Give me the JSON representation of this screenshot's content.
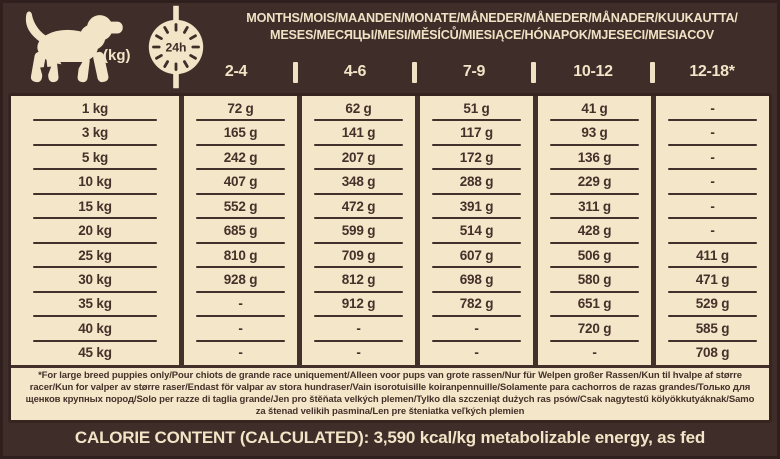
{
  "colors": {
    "background_brown": "#3F2D29",
    "panel_cream": "#F4E6C8",
    "line_dark_brown": "#44302B",
    "text_cream": "#F2E4C6"
  },
  "header": {
    "puppy_icon": "puppy-silhouette",
    "weight_unit_label": "(kg)",
    "clock_icon": "24h-clock",
    "clock_label": "24h",
    "months_line1": "MONTHS/MOIS/MAANDEN/MONATE/MÅNEDER/MÅNEDER/MÅNADER/KUUKAUTTA/",
    "months_line2": "MESES/МЕСЯЦЫ/MESI/MĚSÍCŮ/MIESIĄCE/HÓNAPOK/MJESECI/MESIACOV",
    "age_columns": [
      "2-4",
      "4-6",
      "7-9",
      "10-12",
      "12-18*"
    ]
  },
  "table": {
    "rows": [
      {
        "weight": "1 kg",
        "values": [
          "72 g",
          "62 g",
          "51 g",
          "41 g",
          "-"
        ]
      },
      {
        "weight": "3 kg",
        "values": [
          "165 g",
          "141 g",
          "117 g",
          "93 g",
          "-"
        ]
      },
      {
        "weight": "5 kg",
        "values": [
          "242 g",
          "207 g",
          "172 g",
          "136 g",
          "-"
        ]
      },
      {
        "weight": "10 kg",
        "values": [
          "407 g",
          "348 g",
          "288 g",
          "229 g",
          "-"
        ]
      },
      {
        "weight": "15 kg",
        "values": [
          "552 g",
          "472 g",
          "391 g",
          "311 g",
          "-"
        ]
      },
      {
        "weight": "20 kg",
        "values": [
          "685 g",
          "599 g",
          "514 g",
          "428 g",
          "-"
        ]
      },
      {
        "weight": "25 kg",
        "values": [
          "810 g",
          "709 g",
          "607 g",
          "506 g",
          "411 g"
        ]
      },
      {
        "weight": "30 kg",
        "values": [
          "928 g",
          "812 g",
          "698 g",
          "580 g",
          "471 g"
        ]
      },
      {
        "weight": "35 kg",
        "values": [
          "-",
          "912 g",
          "782 g",
          "651 g",
          "529 g"
        ]
      },
      {
        "weight": "40 kg",
        "values": [
          "-",
          "-",
          "-",
          "720 g",
          "585 g"
        ]
      },
      {
        "weight": "45 kg",
        "values": [
          "-",
          "-",
          "-",
          "-",
          "708 g"
        ]
      }
    ]
  },
  "footnote_text": "*For large breed puppies only/Pour chiots de grande race uniquement/Alleen voor pups van grote rassen/Nur für Welpen großer Rassen/Kun til hvalpe af større racer/Kun for valper av større raser/Endast för valpar av stora hundraser/Vain isorotuisille koiranpennuille/Solamente para cachorros de razas grandes/Только для щенков крупных пород/Solo per razze di taglia grande/Jen pro štěňata velkých plemen/Tylko dla szczeniąt dużych ras psów/Csak nagytestű kölyökkutyáknak/Samo za štenad velikih pasmina/Len pre šteniatka veľkých plemien",
  "calorie_bar": {
    "text": "CALORIE CONTENT (CALCULATED): 3,590 kcal/kg metabolizable energy, as fed"
  }
}
